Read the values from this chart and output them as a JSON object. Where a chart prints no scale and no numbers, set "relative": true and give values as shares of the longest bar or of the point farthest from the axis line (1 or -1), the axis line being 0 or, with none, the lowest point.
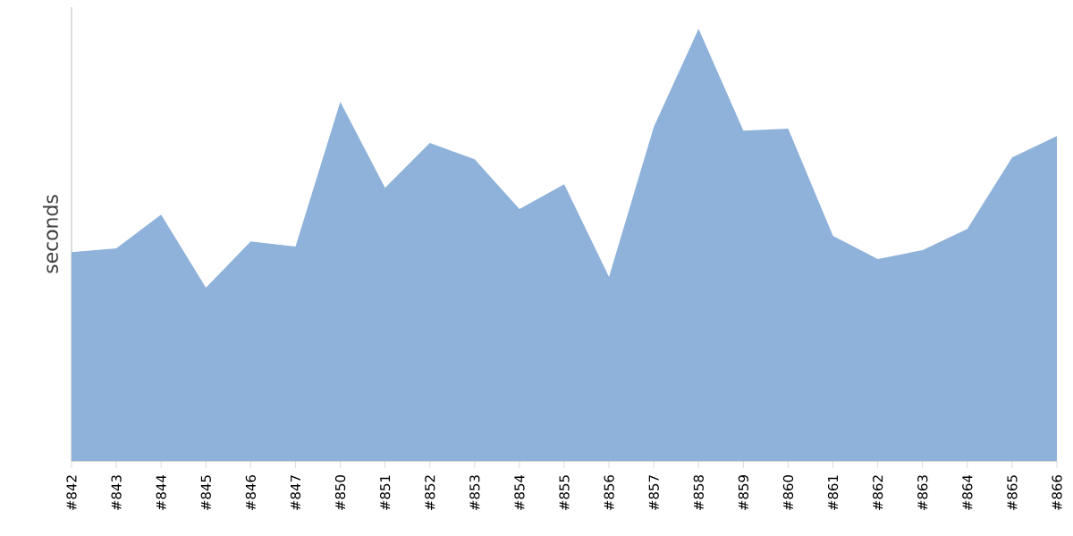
{
  "chart_data": {
    "type": "area",
    "ylabel": "seconds",
    "relative": true,
    "color": "#8fb2da",
    "categories": [
      "#842",
      "#843",
      "#844",
      "#845",
      "#846",
      "#847",
      "#850",
      "#851",
      "#852",
      "#853",
      "#854",
      "#855",
      "#856",
      "#857",
      "#858",
      "#859",
      "#860",
      "#861",
      "#862",
      "#863",
      "#864",
      "#865",
      "#866"
    ],
    "values": [
      0.483,
      0.492,
      0.57,
      0.401,
      0.508,
      0.496,
      0.831,
      0.632,
      0.736,
      0.698,
      0.583,
      0.64,
      0.426,
      0.773,
      1,
      0.764,
      0.769,
      0.521,
      0.467,
      0.488,
      0.537,
      0.702,
      0.752
    ]
  }
}
